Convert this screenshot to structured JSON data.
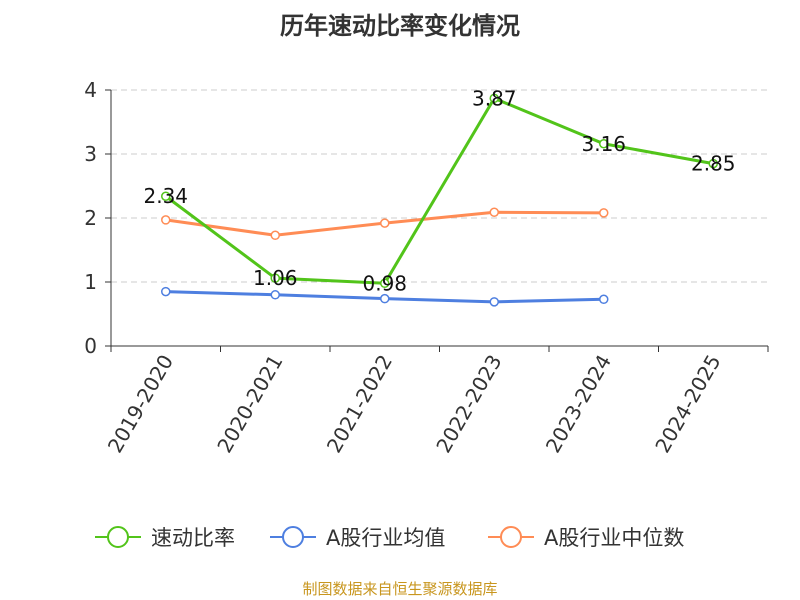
{
  "chart_data": {
    "type": "line",
    "title": "历年速动比率变化情况",
    "categories": [
      "2019-2020",
      "2020-2021",
      "2021-2022",
      "2022-2023",
      "2023-2024",
      "2024-2025"
    ],
    "ylim": [
      0,
      4
    ],
    "yticks": [
      0,
      1,
      2,
      3,
      4
    ],
    "grid": true,
    "legend_position": "bottom",
    "series": [
      {
        "name": "速动比率",
        "color": "#52c41a",
        "values": [
          2.34,
          1.06,
          0.98,
          3.87,
          3.16,
          2.85
        ],
        "labels": true
      },
      {
        "name": "A股行业均值",
        "color": "#4e7fe0",
        "values": [
          0.85,
          0.8,
          0.74,
          0.69,
          0.73,
          null
        ],
        "labels": false
      },
      {
        "name": "A股行业中位数",
        "color": "#ff8c55",
        "values": [
          1.97,
          1.73,
          1.92,
          2.09,
          2.08,
          null
        ],
        "labels": false
      }
    ],
    "source": "制图数据来自恒生聚源数据库"
  }
}
